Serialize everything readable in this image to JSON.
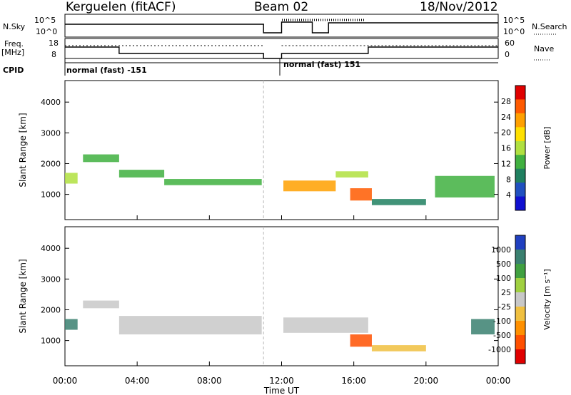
{
  "header": {
    "station": "Kerguelen (fitACF)",
    "beam": "Beam 02",
    "date": "18/Nov/2012"
  },
  "panel_labels": {
    "nsky": "N.Sky",
    "nsearch": "N.Search",
    "freq": "Freq.",
    "freq_unit": "[MHz]",
    "nave": "Nave",
    "cpid": "CPID",
    "nsky_hi": "10^5",
    "nsky_lo": "10^0",
    "nsearch_hi": "10^5",
    "nsearch_lo": "10^0",
    "freq_hi": "18",
    "freq_lo": "8",
    "nave_hi": "60",
    "nave_lo": "0",
    "cpid_seg1": "normal (fast) -151",
    "cpid_seg2": "normal (fast) 151"
  },
  "chart_data": [
    {
      "type": "heatmap",
      "name": "power",
      "xlabel": "Time UT",
      "ylabel": "Slant Range [km]",
      "xlim": [
        0,
        24
      ],
      "ylim": [
        180,
        4700
      ],
      "x_ticks": [
        "00:00",
        "04:00",
        "08:00",
        "12:00",
        "16:00",
        "20:00",
        "00:00"
      ],
      "y_ticks": [
        1000,
        2000,
        3000,
        4000
      ],
      "colorbar_label": "Power [dB]",
      "colorbar_ticks": [
        "28",
        "24",
        "20",
        "16",
        "12",
        "8",
        "4"
      ],
      "colorbar_colors": [
        "#e00000",
        "#ff5a00",
        "#ffa000",
        "#ffe000",
        "#b0e040",
        "#40b040",
        "#208060",
        "#2050c0",
        "#1010d0"
      ],
      "data_gap_hours": [
        11.0,
        12.0
      ],
      "echo_bands": [
        {
          "t0": 0.0,
          "t1": 0.7,
          "r0": 1350,
          "r1": 1700,
          "level": 14
        },
        {
          "t0": 1.0,
          "t1": 3.0,
          "r0": 2050,
          "r1": 2300,
          "level": 12
        },
        {
          "t0": 3.0,
          "t1": 5.5,
          "r0": 1550,
          "r1": 1800,
          "level": 12
        },
        {
          "t0": 5.5,
          "t1": 10.9,
          "r0": 1300,
          "r1": 1500,
          "level": 12
        },
        {
          "t0": 12.1,
          "t1": 15.0,
          "r0": 1100,
          "r1": 1450,
          "level": 22
        },
        {
          "t0": 15.0,
          "t1": 16.8,
          "r0": 1550,
          "r1": 1750,
          "level": 14
        },
        {
          "t0": 15.8,
          "t1": 17.0,
          "r0": 800,
          "r1": 1200,
          "level": 26
        },
        {
          "t0": 17.0,
          "t1": 20.0,
          "r0": 650,
          "r1": 850,
          "level": 8
        },
        {
          "t0": 20.5,
          "t1": 23.8,
          "r0": 900,
          "r1": 1600,
          "level": 10
        }
      ]
    },
    {
      "type": "heatmap",
      "name": "velocity",
      "xlabel": "Time UT",
      "ylabel": "Slant Range [km]",
      "xlim": [
        0,
        24
      ],
      "ylim": [
        180,
        4700
      ],
      "x_ticks": [
        "00:00",
        "04:00",
        "08:00",
        "12:00",
        "16:00",
        "20:00",
        "00:00"
      ],
      "y_ticks": [
        1000,
        2000,
        3000,
        4000
      ],
      "colorbar_label": "Velocity [m s⁻¹]",
      "colorbar_ticks": [
        "1000",
        "500",
        "100",
        "25",
        "-25",
        "-100",
        "-500",
        "-1000"
      ],
      "colorbar_colors": [
        "#2040c0",
        "#3a8070",
        "#40a040",
        "#a0d040",
        "#c8c8c8",
        "#f0c040",
        "#ff9000",
        "#ff5000",
        "#e00000"
      ],
      "data_gap_hours": [
        11.0,
        12.0
      ],
      "echo_bands": [
        {
          "t0": 0.0,
          "t1": 0.7,
          "r0": 1350,
          "r1": 1700,
          "level": 500
        },
        {
          "t0": 1.0,
          "t1": 3.0,
          "r0": 2050,
          "r1": 2300,
          "level": 0
        },
        {
          "t0": 3.0,
          "t1": 10.9,
          "r0": 1200,
          "r1": 1800,
          "level": 0
        },
        {
          "t0": 12.1,
          "t1": 16.8,
          "r0": 1250,
          "r1": 1750,
          "level": 0
        },
        {
          "t0": 15.8,
          "t1": 17.0,
          "r0": 800,
          "r1": 1200,
          "level": -500
        },
        {
          "t0": 17.0,
          "t1": 20.0,
          "r0": 650,
          "r1": 850,
          "level": -50
        },
        {
          "t0": 22.5,
          "t1": 23.8,
          "r0": 1200,
          "r1": 1700,
          "level": 600
        }
      ]
    }
  ]
}
